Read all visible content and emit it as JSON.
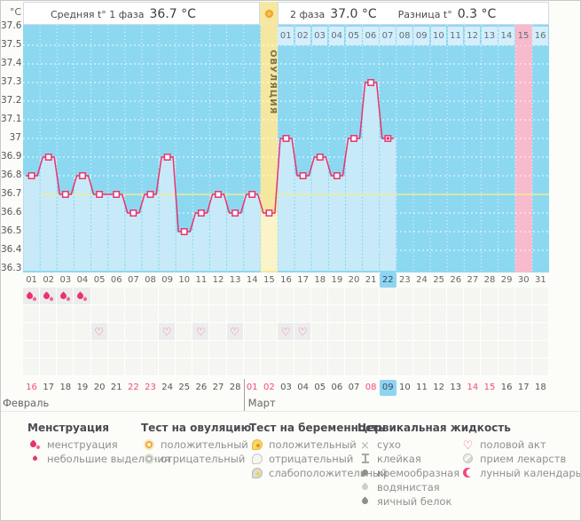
{
  "header": {
    "unit": "°C",
    "phase1_label": "Средняя t° 1 фаза",
    "phase1_value": "36.7 °C",
    "phase2_label": "2 фаза",
    "phase2_value": "37.0 °C",
    "diff_label": "Разница t°",
    "diff_value": "0.3 °C",
    "ovulation_label": "ОВУЛЯЦИЯ"
  },
  "chart_data": {
    "type": "line",
    "title": "",
    "ylabel": "°C",
    "ylim": [
      36.3,
      37.6
    ],
    "ytick_step": 0.1,
    "ytick_labels": [
      "37.6",
      "37.5",
      "37.4",
      "37.3",
      "37.2",
      "37.1",
      "37",
      "36.9",
      "36.8",
      "36.7",
      "36.6",
      "36.5",
      "36.4",
      "36.3"
    ],
    "grid": true,
    "x_days": [
      1,
      2,
      3,
      4,
      5,
      6,
      7,
      8,
      9,
      10,
      11,
      12,
      13,
      14,
      15,
      16,
      17,
      18,
      19,
      20,
      21,
      22
    ],
    "series": [
      {
        "name": "t°",
        "values": [
          36.8,
          36.9,
          36.7,
          36.8,
          36.7,
          36.7,
          36.6,
          36.7,
          36.9,
          36.5,
          36.6,
          36.7,
          36.6,
          36.7,
          36.6,
          37.0,
          36.8,
          36.9,
          36.8,
          37.0,
          37.3,
          37.0
        ]
      }
    ],
    "coverline": 36.7,
    "ovulation_day": 15,
    "current_day": 22,
    "expected_period_day": 30,
    "dpo_labels": [
      "01",
      "02",
      "03",
      "04",
      "05",
      "06",
      "07",
      "08",
      "09",
      "10",
      "11",
      "12",
      "13",
      "14",
      "15",
      "16"
    ],
    "dpo_highlighted": "15"
  },
  "grid": {
    "cycle_days": [
      "01",
      "02",
      "03",
      "04",
      "05",
      "06",
      "07",
      "08",
      "09",
      "10",
      "11",
      "12",
      "13",
      "14",
      "15",
      "16",
      "17",
      "18",
      "19",
      "20",
      "21",
      "22",
      "23",
      "24",
      "25",
      "26",
      "27",
      "28",
      "29",
      "30",
      "31"
    ],
    "current_cycle_day_index": 21,
    "rows": [
      {
        "name": "menstruation",
        "icon": "drops",
        "days": [
          1,
          2,
          3,
          4
        ]
      },
      {
        "name": "row-2",
        "icon": "",
        "days": []
      },
      {
        "name": "intercourse",
        "icon": "heart",
        "days": [
          5,
          9,
          11,
          13,
          16,
          17
        ]
      },
      {
        "name": "row-4",
        "icon": "",
        "days": []
      },
      {
        "name": "row-5",
        "icon": "",
        "days": []
      }
    ],
    "dates": [
      "16",
      "17",
      "18",
      "19",
      "20",
      "21",
      "22",
      "23",
      "24",
      "25",
      "26",
      "27",
      "28",
      "01",
      "02",
      "03",
      "04",
      "05",
      "06",
      "07",
      "08",
      "09",
      "10",
      "11",
      "12",
      "13",
      "14",
      "15",
      "16",
      "17",
      "18"
    ],
    "weekend_indices": [
      0,
      6,
      7,
      13,
      14,
      20,
      26,
      27
    ],
    "today_index": 21,
    "months": [
      {
        "label": "Февраль",
        "span": 13
      },
      {
        "label": "Март",
        "span": 18
      }
    ]
  },
  "legend": {
    "columns": [
      {
        "title": "Менструация",
        "items": [
          {
            "icon": "drops",
            "label": "менструация"
          },
          {
            "icon": "drop-small",
            "label": "небольшие выделения"
          }
        ]
      },
      {
        "title": "Тест на овуляцию",
        "items": [
          {
            "icon": "ring-orange",
            "label": "положительный"
          },
          {
            "icon": "ring-grey",
            "label": "отрицательный"
          }
        ]
      },
      {
        "title": "Тест на беременность",
        "items": [
          {
            "icon": "preg-positive",
            "label": "положительный"
          },
          {
            "icon": "preg-negative",
            "label": "отрицательный"
          },
          {
            "icon": "preg-weak",
            "label": "слабоположительный"
          }
        ]
      },
      {
        "title": "Цервикальная жидкость",
        "items": [
          {
            "icon": "cf-dry",
            "label": "сухо"
          },
          {
            "icon": "cf-sticky",
            "label": "клейкая"
          },
          {
            "icon": "cf-creamy",
            "label": "кремообразная"
          },
          {
            "icon": "cf-watery",
            "label": "водянистая"
          },
          {
            "icon": "cf-eggwhite",
            "label": "яичный белок"
          }
        ]
      },
      {
        "title": "",
        "items": [
          {
            "icon": "heart",
            "label": "половой акт"
          },
          {
            "icon": "pill",
            "label": "прием лекарств"
          },
          {
            "icon": "moon",
            "label": "лунный календарь"
          }
        ]
      }
    ]
  },
  "colors": {
    "chart_bg": "#8dd8f1",
    "fill": "#c8eaf8",
    "ovulation_band": "#f5e7a0",
    "ovulation_fill": "#fbf4c9",
    "period_band": "#f8bacd",
    "line": "#e8336d",
    "coverline": "#efec92",
    "day_cell": "#d5eefb",
    "highlight_cell": "#8fd4f1",
    "weekend": "#f24a7d"
  }
}
